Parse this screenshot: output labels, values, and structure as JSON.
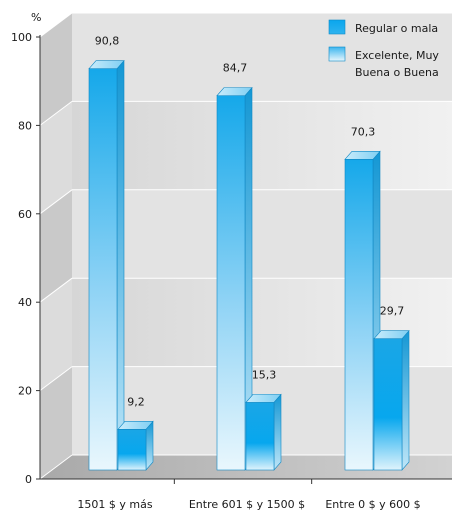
{
  "chart_data": {
    "type": "bar",
    "unit_label": "%",
    "categories": [
      "1501 $ y más",
      "Entre 601 $ y 1500 $",
      "Entre 0 $ y 600 $"
    ],
    "series": [
      {
        "name": "Regular o mala",
        "values": [
          90.8,
          84.7,
          70.3
        ],
        "value_labels": [
          "90,8",
          "84,7",
          "70,3"
        ],
        "color": "#1aaaea"
      },
      {
        "name": "Excelente, Muy Buena o Buena",
        "values": [
          9.2,
          15.3,
          29.7
        ],
        "value_labels": [
          "9,2",
          "15,3",
          "29,7"
        ],
        "color": "#1aaaea"
      }
    ],
    "legend": {
      "position": "top-right",
      "items": [
        "Regular o mala",
        "Excelente, Muy",
        "Buena o Buena"
      ]
    },
    "y_ticks": [
      "0",
      "20",
      "40",
      "60",
      "80",
      "100"
    ],
    "ylim": [
      0,
      100
    ],
    "grid": true,
    "style": "3d-bars"
  }
}
